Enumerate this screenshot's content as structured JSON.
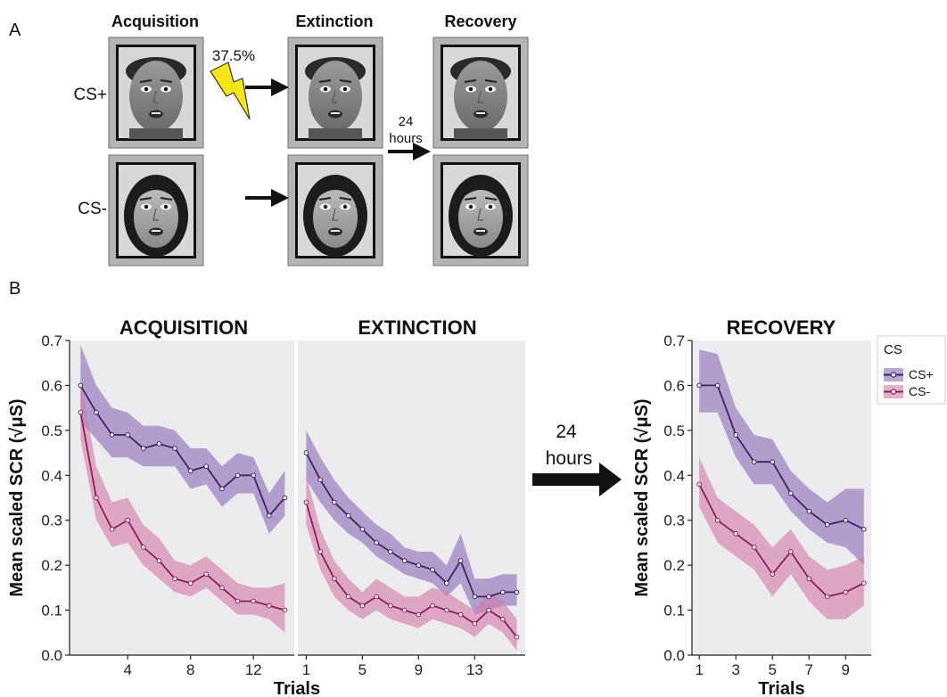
{
  "panel_a": {
    "letter": "A",
    "phases": [
      "Acquisition",
      "Extinction",
      "Recovery"
    ],
    "rows": [
      "CS+",
      "CS-"
    ],
    "reinforcement": "37.5%",
    "delay_top": "24",
    "delay_bottom": "hours"
  },
  "panel_b": {
    "letter": "B",
    "delay_top": "24",
    "delay_bottom": "hours",
    "xlabel": "Trials",
    "ylabel": "Mean scaled SCR (√μS)",
    "legend_title": "CS",
    "legend_items": [
      "CS+",
      "CS-"
    ]
  },
  "colors": {
    "cs_plus": "#3d2466",
    "cs_plus_band": "#8a6bb5",
    "cs_minus": "#8e1e5b",
    "cs_minus_band": "#d47aa8",
    "panel_bg": "#ececee"
  },
  "chart_data": [
    {
      "type": "line",
      "title": "ACQUISITION",
      "xlabel": "Trials",
      "ylabel": "Mean scaled SCR (√μS)",
      "ylim": [
        0,
        0.7
      ],
      "yticks": [
        0.0,
        0.1,
        0.2,
        0.3,
        0.4,
        0.5,
        0.6,
        0.7
      ],
      "xticks": [
        4,
        8,
        12
      ],
      "x": [
        1,
        2,
        3,
        4,
        5,
        6,
        7,
        8,
        9,
        10,
        11,
        12,
        13,
        14
      ],
      "series": [
        {
          "name": "CS+",
          "values": [
            0.6,
            0.54,
            0.49,
            0.49,
            0.46,
            0.47,
            0.46,
            0.41,
            0.42,
            0.37,
            0.4,
            0.4,
            0.31,
            0.35
          ],
          "lower": [
            0.52,
            0.48,
            0.44,
            0.44,
            0.42,
            0.42,
            0.42,
            0.37,
            0.38,
            0.33,
            0.36,
            0.36,
            0.27,
            0.31
          ],
          "upper": [
            0.69,
            0.6,
            0.55,
            0.54,
            0.51,
            0.51,
            0.5,
            0.46,
            0.46,
            0.42,
            0.45,
            0.44,
            0.36,
            0.41
          ]
        },
        {
          "name": "CS-",
          "values": [
            0.54,
            0.35,
            0.28,
            0.3,
            0.24,
            0.21,
            0.17,
            0.16,
            0.18,
            0.15,
            0.12,
            0.12,
            0.11,
            0.1
          ],
          "lower": [
            0.48,
            0.3,
            0.24,
            0.25,
            0.2,
            0.17,
            0.14,
            0.13,
            0.15,
            0.12,
            0.09,
            0.09,
            0.08,
            0.05
          ],
          "upper": [
            0.61,
            0.42,
            0.34,
            0.35,
            0.29,
            0.26,
            0.21,
            0.2,
            0.22,
            0.19,
            0.16,
            0.15,
            0.15,
            0.16
          ]
        }
      ]
    },
    {
      "type": "line",
      "title": "EXTINCTION",
      "xlabel": "Trials",
      "ylim": [
        0,
        0.7
      ],
      "xticks": [
        1,
        5,
        9,
        13
      ],
      "x": [
        1,
        2,
        3,
        4,
        5,
        6,
        7,
        8,
        9,
        10,
        11,
        12,
        13,
        14,
        15,
        16
      ],
      "series": [
        {
          "name": "CS+",
          "values": [
            0.45,
            0.39,
            0.34,
            0.31,
            0.28,
            0.25,
            0.23,
            0.21,
            0.2,
            0.19,
            0.16,
            0.21,
            0.13,
            0.13,
            0.14,
            0.14
          ],
          "lower": [
            0.39,
            0.34,
            0.3,
            0.27,
            0.25,
            0.22,
            0.2,
            0.18,
            0.17,
            0.16,
            0.13,
            0.16,
            0.09,
            0.1,
            0.11,
            0.11
          ],
          "upper": [
            0.5,
            0.44,
            0.39,
            0.35,
            0.32,
            0.29,
            0.27,
            0.24,
            0.23,
            0.23,
            0.2,
            0.27,
            0.17,
            0.17,
            0.18,
            0.18
          ]
        },
        {
          "name": "CS-",
          "values": [
            0.34,
            0.23,
            0.17,
            0.13,
            0.11,
            0.13,
            0.11,
            0.1,
            0.09,
            0.11,
            0.1,
            0.09,
            0.07,
            0.1,
            0.08,
            0.04
          ],
          "lower": [
            0.29,
            0.19,
            0.13,
            0.1,
            0.08,
            0.1,
            0.08,
            0.07,
            0.06,
            0.08,
            0.07,
            0.06,
            0.04,
            0.07,
            0.05,
            0.01
          ],
          "upper": [
            0.4,
            0.28,
            0.21,
            0.17,
            0.14,
            0.17,
            0.15,
            0.13,
            0.13,
            0.15,
            0.14,
            0.12,
            0.1,
            0.14,
            0.12,
            0.08
          ]
        }
      ]
    },
    {
      "type": "line",
      "title": "RECOVERY",
      "xlabel": "Trials",
      "ylabel": "Mean scaled SCR (√μS)",
      "ylim": [
        0,
        0.7
      ],
      "yticks": [
        0.0,
        0.1,
        0.2,
        0.3,
        0.4,
        0.5,
        0.6,
        0.7
      ],
      "xticks": [
        1,
        3,
        5,
        7,
        9
      ],
      "x": [
        1,
        2,
        3,
        4,
        5,
        6,
        7,
        8,
        9,
        10
      ],
      "series": [
        {
          "name": "CS+",
          "values": [
            0.6,
            0.6,
            0.49,
            0.43,
            0.43,
            0.36,
            0.32,
            0.29,
            0.3,
            0.28
          ],
          "lower": [
            0.54,
            0.54,
            0.44,
            0.38,
            0.38,
            0.32,
            0.28,
            0.25,
            0.24,
            0.2
          ],
          "upper": [
            0.68,
            0.67,
            0.55,
            0.49,
            0.48,
            0.41,
            0.37,
            0.34,
            0.37,
            0.37
          ]
        },
        {
          "name": "CS-",
          "values": [
            0.38,
            0.3,
            0.27,
            0.24,
            0.18,
            0.23,
            0.17,
            0.13,
            0.14,
            0.16
          ],
          "lower": [
            0.33,
            0.25,
            0.22,
            0.19,
            0.13,
            0.18,
            0.12,
            0.08,
            0.08,
            0.11
          ],
          "upper": [
            0.44,
            0.35,
            0.32,
            0.29,
            0.24,
            0.28,
            0.22,
            0.19,
            0.2,
            0.22
          ]
        }
      ]
    }
  ]
}
